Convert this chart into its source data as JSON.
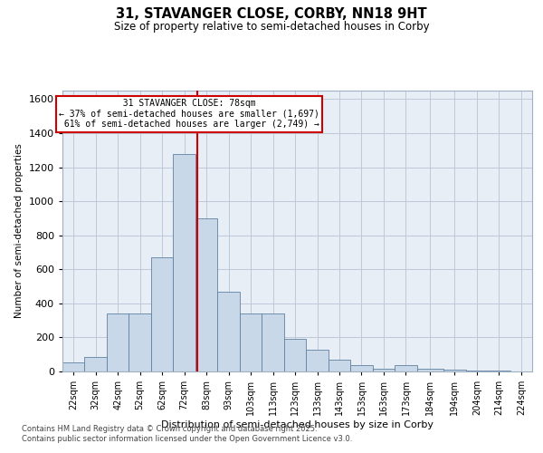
{
  "title": "31, STAVANGER CLOSE, CORBY, NN18 9HT",
  "subtitle": "Size of property relative to semi-detached houses in Corby",
  "xlabel": "Distribution of semi-detached houses by size in Corby",
  "ylabel": "Number of semi-detached properties",
  "footnote1": "Contains HM Land Registry data © Crown copyright and database right 2025.",
  "footnote2": "Contains public sector information licensed under the Open Government Licence v3.0.",
  "property_size": 78,
  "property_label": "31 STAVANGER CLOSE: 78sqm",
  "pct_smaller": 37,
  "pct_larger": 61,
  "count_smaller": 1697,
  "count_larger": 2749,
  "bar_color": "#c8d8e8",
  "bar_edge_color": "#6080a0",
  "vline_color": "#cc0000",
  "annotation_box_color": "#cc0000",
  "grid_color": "#c0c8d8",
  "background_color": "#e8eef6",
  "categories": [
    "22sqm",
    "32sqm",
    "42sqm",
    "52sqm",
    "62sqm",
    "72sqm",
    "83sqm",
    "93sqm",
    "103sqm",
    "113sqm",
    "123sqm",
    "133sqm",
    "143sqm",
    "153sqm",
    "163sqm",
    "173sqm",
    "184sqm",
    "194sqm",
    "204sqm",
    "214sqm",
    "224sqm"
  ],
  "bin_edges": [
    17,
    27,
    37,
    47,
    57,
    67,
    77,
    87,
    97,
    107,
    117,
    127,
    137,
    147,
    157,
    167,
    177,
    189,
    199,
    209,
    219,
    229
  ],
  "values": [
    55,
    85,
    340,
    340,
    670,
    1280,
    900,
    470,
    340,
    340,
    190,
    130,
    70,
    35,
    15,
    35,
    15,
    8,
    4,
    4,
    2
  ],
  "ylim": [
    0,
    1650
  ],
  "yticks": [
    0,
    200,
    400,
    600,
    800,
    1000,
    1200,
    1400,
    1600
  ],
  "xlim": [
    17,
    229
  ]
}
